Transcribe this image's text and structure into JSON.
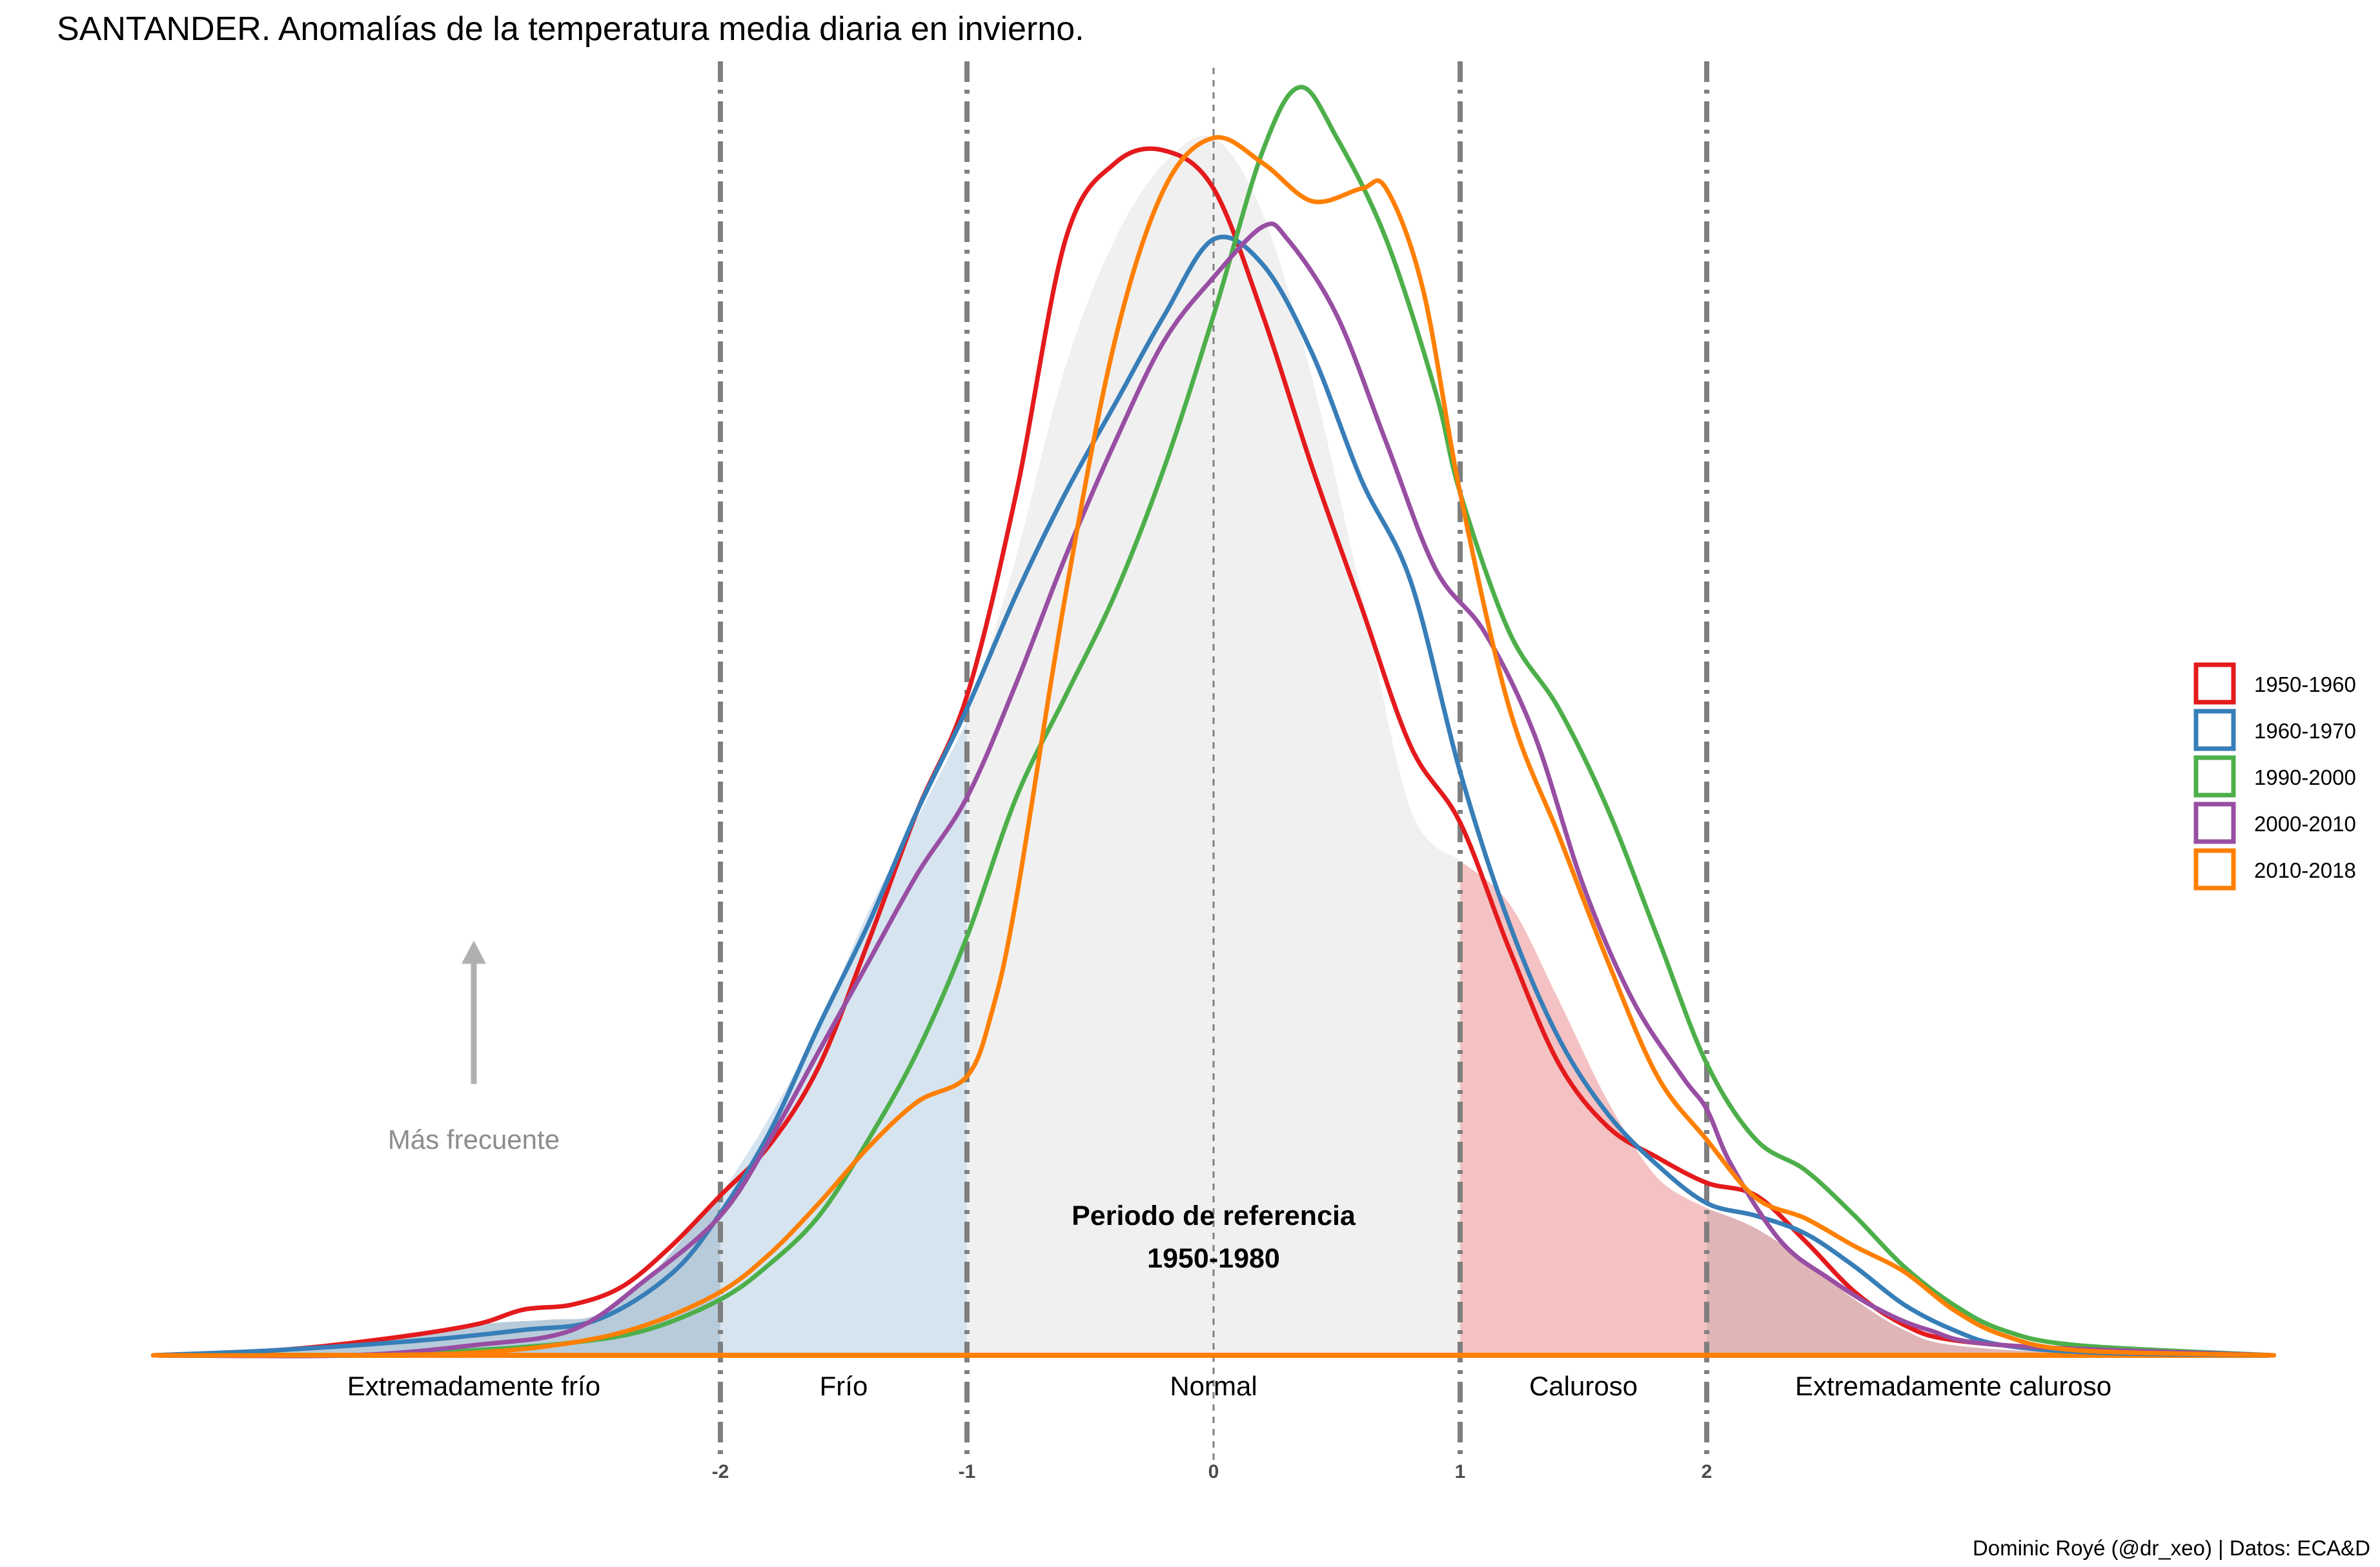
{
  "chart_data": {
    "type": "density",
    "title": "SANTANDER. Anomalías de la temperatura media diaria en invierno.",
    "caption": "Dominic Royé (@dr_xeo) | Datos: ECA&D",
    "xlim": [
      -4.3,
      4.3
    ],
    "ylim": [
      0,
      0.49
    ],
    "x_ticks": [
      {
        "value": -2,
        "label": "-2"
      },
      {
        "value": -1,
        "label": "-1"
      },
      {
        "value": 0,
        "label": "0"
      },
      {
        "value": 1,
        "label": "1"
      },
      {
        "value": 2,
        "label": "2"
      }
    ],
    "categories": [
      {
        "label": "Extremadamente frío",
        "x": -3.0
      },
      {
        "label": "Frío",
        "x": -1.5
      },
      {
        "label": "Normal",
        "x": 0
      },
      {
        "label": "Caluroso",
        "x": 1.5
      },
      {
        "label": "Extremadamente caluroso",
        "x": 3.0
      }
    ],
    "reference": {
      "line1": "Periodo de referencia",
      "line2": "1950-1980",
      "x": 0,
      "y": 0.055,
      "fill": "#f0f0f0",
      "cold_fill": "#d6e4f0",
      "extreme_cold_fill": "#b8cbda",
      "warm_fill": "#f4c2c2",
      "extreme_warm_fill": "#e0b5b8",
      "points": [
        [
          -4.3,
          0.0
        ],
        [
          -3.5,
          0.005
        ],
        [
          -3.0,
          0.012
        ],
        [
          -2.7,
          0.014
        ],
        [
          -2.5,
          0.016
        ],
        [
          -2.3,
          0.03
        ],
        [
          -2.1,
          0.052
        ],
        [
          -2.0,
          0.063
        ],
        [
          -1.8,
          0.094
        ],
        [
          -1.6,
          0.13
        ],
        [
          -1.4,
          0.175
        ],
        [
          -1.2,
          0.212
        ],
        [
          -1.0,
          0.25
        ],
        [
          -0.8,
          0.315
        ],
        [
          -0.6,
          0.39
        ],
        [
          -0.4,
          0.44
        ],
        [
          -0.2,
          0.47
        ],
        [
          0.0,
          0.48
        ],
        [
          0.2,
          0.45
        ],
        [
          0.4,
          0.385
        ],
        [
          0.6,
          0.3
        ],
        [
          0.8,
          0.215
        ],
        [
          1.0,
          0.195
        ],
        [
          1.2,
          0.178
        ],
        [
          1.4,
          0.14
        ],
        [
          1.6,
          0.1
        ],
        [
          1.8,
          0.07
        ],
        [
          2.0,
          0.058
        ],
        [
          2.2,
          0.05
        ],
        [
          2.4,
          0.037
        ],
        [
          2.6,
          0.022
        ],
        [
          2.8,
          0.01
        ],
        [
          3.0,
          0.004
        ],
        [
          3.5,
          0.001
        ],
        [
          4.3,
          0.0
        ]
      ]
    },
    "annotation": {
      "label": "Más frecuente",
      "x": -3.0,
      "y": 0.085,
      "arrow_from": 0.107,
      "arrow_to": 0.163,
      "color": "#b0b0b0"
    },
    "series": [
      {
        "name": "1950-1960",
        "color": "#e41a1c",
        "points": [
          [
            -4.3,
            0.0
          ],
          [
            -3.8,
            0.002
          ],
          [
            -3.4,
            0.006
          ],
          [
            -3.0,
            0.012
          ],
          [
            -2.8,
            0.018
          ],
          [
            -2.6,
            0.02
          ],
          [
            -2.4,
            0.027
          ],
          [
            -2.2,
            0.043
          ],
          [
            -2.0,
            0.063
          ],
          [
            -1.8,
            0.083
          ],
          [
            -1.6,
            0.114
          ],
          [
            -1.4,
            0.163
          ],
          [
            -1.2,
            0.215
          ],
          [
            -1.0,
            0.26
          ],
          [
            -0.8,
            0.34
          ],
          [
            -0.6,
            0.44
          ],
          [
            -0.4,
            0.47
          ],
          [
            -0.2,
            0.475
          ],
          [
            0.0,
            0.46
          ],
          [
            0.2,
            0.41
          ],
          [
            0.4,
            0.35
          ],
          [
            0.6,
            0.295
          ],
          [
            0.8,
            0.24
          ],
          [
            1.0,
            0.21
          ],
          [
            1.2,
            0.16
          ],
          [
            1.4,
            0.115
          ],
          [
            1.6,
            0.09
          ],
          [
            1.8,
            0.078
          ],
          [
            2.0,
            0.068
          ],
          [
            2.2,
            0.063
          ],
          [
            2.4,
            0.045
          ],
          [
            2.6,
            0.025
          ],
          [
            2.8,
            0.012
          ],
          [
            3.0,
            0.006
          ],
          [
            3.5,
            0.002
          ],
          [
            3.8,
            0.001
          ],
          [
            4.3,
            0.0
          ]
        ]
      },
      {
        "name": "1960-1970",
        "color": "#377eb8",
        "points": [
          [
            -4.3,
            0.0
          ],
          [
            -3.8,
            0.002
          ],
          [
            -3.2,
            0.006
          ],
          [
            -2.8,
            0.01
          ],
          [
            -2.5,
            0.014
          ],
          [
            -2.2,
            0.032
          ],
          [
            -2.0,
            0.056
          ],
          [
            -1.8,
            0.088
          ],
          [
            -1.6,
            0.13
          ],
          [
            -1.4,
            0.17
          ],
          [
            -1.2,
            0.215
          ],
          [
            -1.0,
            0.255
          ],
          [
            -0.8,
            0.3
          ],
          [
            -0.6,
            0.34
          ],
          [
            -0.4,
            0.375
          ],
          [
            -0.2,
            0.41
          ],
          [
            0.0,
            0.44
          ],
          [
            0.2,
            0.43
          ],
          [
            0.4,
            0.395
          ],
          [
            0.6,
            0.345
          ],
          [
            0.8,
            0.305
          ],
          [
            1.0,
            0.23
          ],
          [
            1.2,
            0.17
          ],
          [
            1.4,
            0.125
          ],
          [
            1.6,
            0.095
          ],
          [
            1.8,
            0.075
          ],
          [
            2.0,
            0.06
          ],
          [
            2.2,
            0.055
          ],
          [
            2.4,
            0.048
          ],
          [
            2.6,
            0.035
          ],
          [
            2.8,
            0.02
          ],
          [
            3.0,
            0.01
          ],
          [
            3.2,
            0.004
          ],
          [
            3.6,
            0.001
          ],
          [
            4.3,
            0.0
          ]
        ]
      },
      {
        "name": "1990-2000",
        "color": "#4daf4a",
        "points": [
          [
            -4.3,
            0.0
          ],
          [
            -3.5,
            0.0
          ],
          [
            -3.0,
            0.002
          ],
          [
            -2.6,
            0.005
          ],
          [
            -2.3,
            0.01
          ],
          [
            -2.0,
            0.022
          ],
          [
            -1.8,
            0.036
          ],
          [
            -1.6,
            0.055
          ],
          [
            -1.4,
            0.085
          ],
          [
            -1.2,
            0.12
          ],
          [
            -1.0,
            0.165
          ],
          [
            -0.8,
            0.22
          ],
          [
            -0.6,
            0.26
          ],
          [
            -0.4,
            0.3
          ],
          [
            -0.2,
            0.35
          ],
          [
            0.0,
            0.41
          ],
          [
            0.2,
            0.475
          ],
          [
            0.35,
            0.5
          ],
          [
            0.5,
            0.48
          ],
          [
            0.7,
            0.44
          ],
          [
            0.9,
            0.38
          ],
          [
            1.0,
            0.34
          ],
          [
            1.2,
            0.285
          ],
          [
            1.4,
            0.255
          ],
          [
            1.6,
            0.215
          ],
          [
            1.8,
            0.165
          ],
          [
            2.0,
            0.115
          ],
          [
            2.2,
            0.085
          ],
          [
            2.4,
            0.073
          ],
          [
            2.6,
            0.055
          ],
          [
            2.8,
            0.035
          ],
          [
            3.0,
            0.02
          ],
          [
            3.2,
            0.01
          ],
          [
            3.5,
            0.004
          ],
          [
            4.3,
            0.0
          ]
        ]
      },
      {
        "name": "2000-2010",
        "color": "#984ea3",
        "points": [
          [
            -4.3,
            0.0
          ],
          [
            -3.5,
            0.0
          ],
          [
            -3.0,
            0.004
          ],
          [
            -2.6,
            0.01
          ],
          [
            -2.3,
            0.03
          ],
          [
            -2.0,
            0.055
          ],
          [
            -1.8,
            0.085
          ],
          [
            -1.6,
            0.12
          ],
          [
            -1.4,
            0.155
          ],
          [
            -1.2,
            0.19
          ],
          [
            -1.0,
            0.22
          ],
          [
            -0.8,
            0.265
          ],
          [
            -0.6,
            0.315
          ],
          [
            -0.4,
            0.36
          ],
          [
            -0.2,
            0.4
          ],
          [
            0.0,
            0.425
          ],
          [
            0.2,
            0.445
          ],
          [
            0.3,
            0.44
          ],
          [
            0.5,
            0.41
          ],
          [
            0.7,
            0.36
          ],
          [
            0.9,
            0.31
          ],
          [
            1.1,
            0.285
          ],
          [
            1.3,
            0.245
          ],
          [
            1.5,
            0.185
          ],
          [
            1.7,
            0.14
          ],
          [
            1.9,
            0.11
          ],
          [
            2.0,
            0.097
          ],
          [
            2.1,
            0.075
          ],
          [
            2.3,
            0.045
          ],
          [
            2.5,
            0.03
          ],
          [
            2.7,
            0.018
          ],
          [
            2.9,
            0.01
          ],
          [
            3.2,
            0.004
          ],
          [
            4.3,
            0.0
          ]
        ]
      },
      {
        "name": "2010-2018",
        "color": "#ff7f00",
        "points": [
          [
            -4.3,
            0.0
          ],
          [
            -3.5,
            0.0
          ],
          [
            -3.0,
            0.001
          ],
          [
            -2.6,
            0.005
          ],
          [
            -2.3,
            0.012
          ],
          [
            -2.0,
            0.025
          ],
          [
            -1.8,
            0.04
          ],
          [
            -1.6,
            0.06
          ],
          [
            -1.4,
            0.082
          ],
          [
            -1.2,
            0.1
          ],
          [
            -1.0,
            0.11
          ],
          [
            -0.9,
            0.135
          ],
          [
            -0.8,
            0.18
          ],
          [
            -0.6,
            0.3
          ],
          [
            -0.4,
            0.4
          ],
          [
            -0.2,
            0.46
          ],
          [
            0.0,
            0.48
          ],
          [
            0.2,
            0.47
          ],
          [
            0.4,
            0.455
          ],
          [
            0.6,
            0.46
          ],
          [
            0.7,
            0.46
          ],
          [
            0.85,
            0.42
          ],
          [
            1.0,
            0.34
          ],
          [
            1.2,
            0.255
          ],
          [
            1.4,
            0.205
          ],
          [
            1.6,
            0.155
          ],
          [
            1.8,
            0.11
          ],
          [
            2.0,
            0.085
          ],
          [
            2.2,
            0.062
          ],
          [
            2.4,
            0.054
          ],
          [
            2.6,
            0.043
          ],
          [
            2.8,
            0.033
          ],
          [
            3.0,
            0.018
          ],
          [
            3.2,
            0.008
          ],
          [
            3.5,
            0.002
          ],
          [
            4.3,
            0.0
          ]
        ]
      }
    ]
  }
}
